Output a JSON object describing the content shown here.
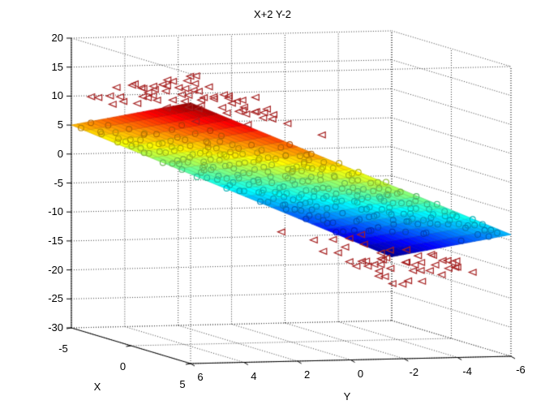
{
  "chart_data": {
    "type": "3d-surface-scatter",
    "title": "X+2 Y-2",
    "xlabel": "X",
    "ylabel": "Y",
    "zlabel": "",
    "x_range": [
      -5,
      5
    ],
    "y_range": [
      6,
      -6
    ],
    "z_range": [
      -30,
      20
    ],
    "x_ticks": [
      -5,
      0,
      5
    ],
    "y_ticks": [
      6,
      4,
      2,
      0,
      -2,
      -4,
      -6
    ],
    "z_ticks": [
      20,
      15,
      10,
      5,
      0,
      -5,
      -10,
      -15,
      -20,
      -25,
      -30
    ],
    "surface_function": "z = x + 2*y - 2",
    "coefficients": {
      "x": 1,
      "y": 2,
      "const": -2
    },
    "surface_grid": {
      "x_step": 0.5,
      "y_step": 0.5
    },
    "colormap": "jet",
    "view": {
      "azimuth": -37.5,
      "elevation": 30
    },
    "grid_on": true,
    "grid_style": "dotted",
    "markers": {
      "triangle": {
        "shape": "triangle-left-open",
        "color": "#a52020",
        "offset_z": 4.8,
        "upper_threshold": 5.5,
        "lower_threshold": -11.5
      },
      "circle": {
        "shape": "circle-open",
        "darken": 0.7
      },
      "grid": {
        "x_start": -4.75,
        "x_step": 0.5,
        "x_count": 20,
        "y_start": -5.7,
        "y_step": 0.6,
        "y_count": 20
      },
      "jitter": {
        "class_amp": 3.5,
        "z_amp": 1.2,
        "xy_amp": 0.22,
        "seed": 7
      }
    }
  }
}
